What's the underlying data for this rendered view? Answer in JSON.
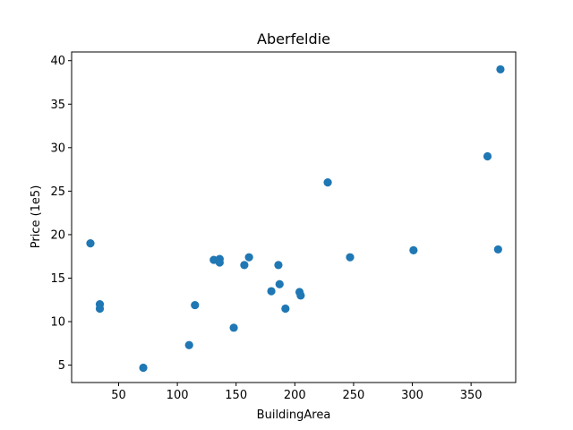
{
  "chart_data": {
    "type": "scatter",
    "title": "Aberfeldie",
    "xlabel": "BuildingArea",
    "ylabel": "Price (1e5)",
    "xlim": [
      10,
      388
    ],
    "ylim": [
      3,
      41
    ],
    "xticks": [
      50,
      100,
      150,
      200,
      250,
      300,
      350
    ],
    "yticks": [
      5,
      10,
      15,
      20,
      25,
      30,
      35,
      40
    ],
    "grid": false,
    "point_color": "#1f77b4",
    "points": [
      {
        "x": 26,
        "y": 19.0
      },
      {
        "x": 34,
        "y": 12.0
      },
      {
        "x": 34,
        "y": 11.5
      },
      {
        "x": 71,
        "y": 4.7
      },
      {
        "x": 110,
        "y": 7.3
      },
      {
        "x": 115,
        "y": 11.9
      },
      {
        "x": 131,
        "y": 17.1
      },
      {
        "x": 136,
        "y": 17.2
      },
      {
        "x": 136,
        "y": 16.8
      },
      {
        "x": 148,
        "y": 9.3
      },
      {
        "x": 157,
        "y": 16.5
      },
      {
        "x": 161,
        "y": 17.4
      },
      {
        "x": 180,
        "y": 13.5
      },
      {
        "x": 186,
        "y": 16.5
      },
      {
        "x": 187,
        "y": 14.3
      },
      {
        "x": 192,
        "y": 11.5
      },
      {
        "x": 204,
        "y": 13.4
      },
      {
        "x": 205,
        "y": 13.0
      },
      {
        "x": 228,
        "y": 26.0
      },
      {
        "x": 247,
        "y": 17.4
      },
      {
        "x": 301,
        "y": 18.2
      },
      {
        "x": 364,
        "y": 29.0
      },
      {
        "x": 373,
        "y": 18.3
      },
      {
        "x": 375,
        "y": 39.0
      }
    ]
  }
}
